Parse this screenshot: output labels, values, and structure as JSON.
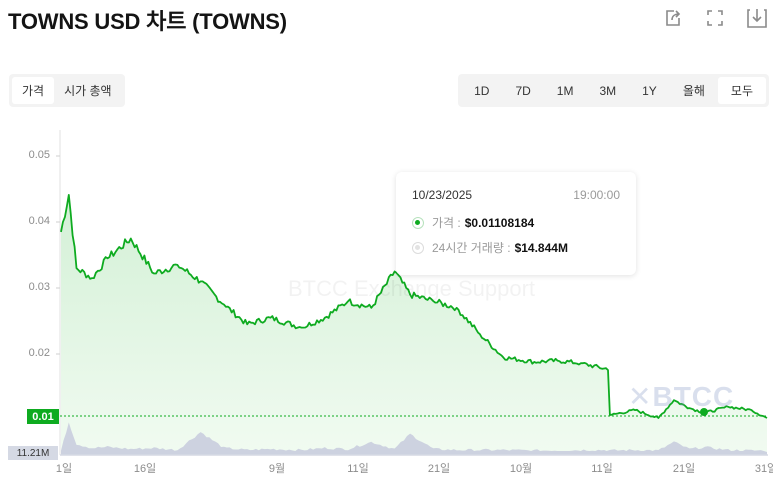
{
  "header": {
    "title": "TOWNS USD 차트 (TOWNS)",
    "icons": [
      "share-icon",
      "fullscreen-icon",
      "download-icon"
    ]
  },
  "metric_toggle": {
    "options": [
      {
        "label": "가격",
        "active": true
      },
      {
        "label": "시가 총액",
        "active": false
      }
    ]
  },
  "range_toggle": {
    "options": [
      {
        "label": "1D",
        "active": false
      },
      {
        "label": "7D",
        "active": false
      },
      {
        "label": "1M",
        "active": false
      },
      {
        "label": "3M",
        "active": false
      },
      {
        "label": "1Y",
        "active": false
      },
      {
        "label": "올해",
        "active": false
      },
      {
        "label": "모두",
        "active": true
      }
    ]
  },
  "tooltip": {
    "date": "10/23/2025",
    "time": "19:00:00",
    "price_label": "가격 :",
    "price_value": "$0.01108184",
    "volume_label": "24시간 거래량 :",
    "volume_value": "$14.844M"
  },
  "current_price_badge": "0.01",
  "volume_axis_badge": "11.21M",
  "watermarks": {
    "text": "BTCC Exchange Support",
    "logo": "BTCC"
  },
  "colors": {
    "line": "#0eab20",
    "area_top": "#d8f2da",
    "area_bottom": "#f2fbf2",
    "volume": "#cdd2e0",
    "badge": "#0eab20"
  },
  "chart_data": {
    "type": "line",
    "title": "TOWNS USD 차트 (TOWNS)",
    "xlabel": "",
    "ylabel": "",
    "ylim": [
      0.008,
      0.053
    ],
    "grid": false,
    "legend": "tooltip",
    "y_ticks": [
      "0.05",
      "0.04",
      "0.03",
      "0.02",
      "0.01"
    ],
    "x_ticks": [
      "1일",
      "16일",
      "9월",
      "11일",
      "21일",
      "10월",
      "11일",
      "21일",
      "31일"
    ],
    "x": [
      "Aug 1",
      "Aug 2",
      "Aug 3",
      "Aug 5",
      "Aug 7",
      "Aug 10",
      "Aug 13",
      "Aug 16",
      "Aug 19",
      "Aug 22",
      "Aug 25",
      "Aug 28",
      "Sep 1",
      "Sep 4",
      "Sep 7",
      "Sep 10",
      "Sep 13",
      "Sep 15",
      "Sep 18",
      "Sep 21",
      "Sep 24",
      "Sep 27",
      "Oct 1",
      "Oct 4",
      "Oct 7",
      "Oct 10",
      "Oct 11",
      "Oct 14",
      "Oct 17",
      "Oct 19",
      "Oct 21",
      "Oct 23",
      "Oct 26",
      "Oct 29",
      "Oct 31"
    ],
    "series": [
      {
        "name": "가격",
        "values": [
          0.0385,
          0.0441,
          0.033,
          0.0315,
          0.0345,
          0.0375,
          0.0322,
          0.0335,
          0.031,
          0.0275,
          0.0245,
          0.0255,
          0.024,
          0.0255,
          0.028,
          0.027,
          0.0325,
          0.029,
          0.028,
          0.027,
          0.023,
          0.0195,
          0.0188,
          0.019,
          0.0186,
          0.0178,
          0.0108,
          0.0115,
          0.0103,
          0.013,
          0.0118,
          0.01108,
          0.012,
          0.0115,
          0.0103
        ]
      },
      {
        "name": "24시간 거래량",
        "values": [
          11.21,
          40,
          18,
          14,
          15,
          13,
          14,
          12,
          30,
          14,
          12,
          13,
          12,
          14,
          13,
          20,
          13,
          28,
          13,
          12,
          12,
          12,
          11.5,
          11.5,
          12,
          12,
          11.5,
          12,
          11.5,
          20,
          13,
          14.844,
          12,
          11.5,
          11.5
        ]
      }
    ],
    "annotations": [
      {
        "x": "10/23/2025 19:00:00",
        "price": 0.01108184,
        "volume_24h": "$14.844M"
      }
    ]
  }
}
